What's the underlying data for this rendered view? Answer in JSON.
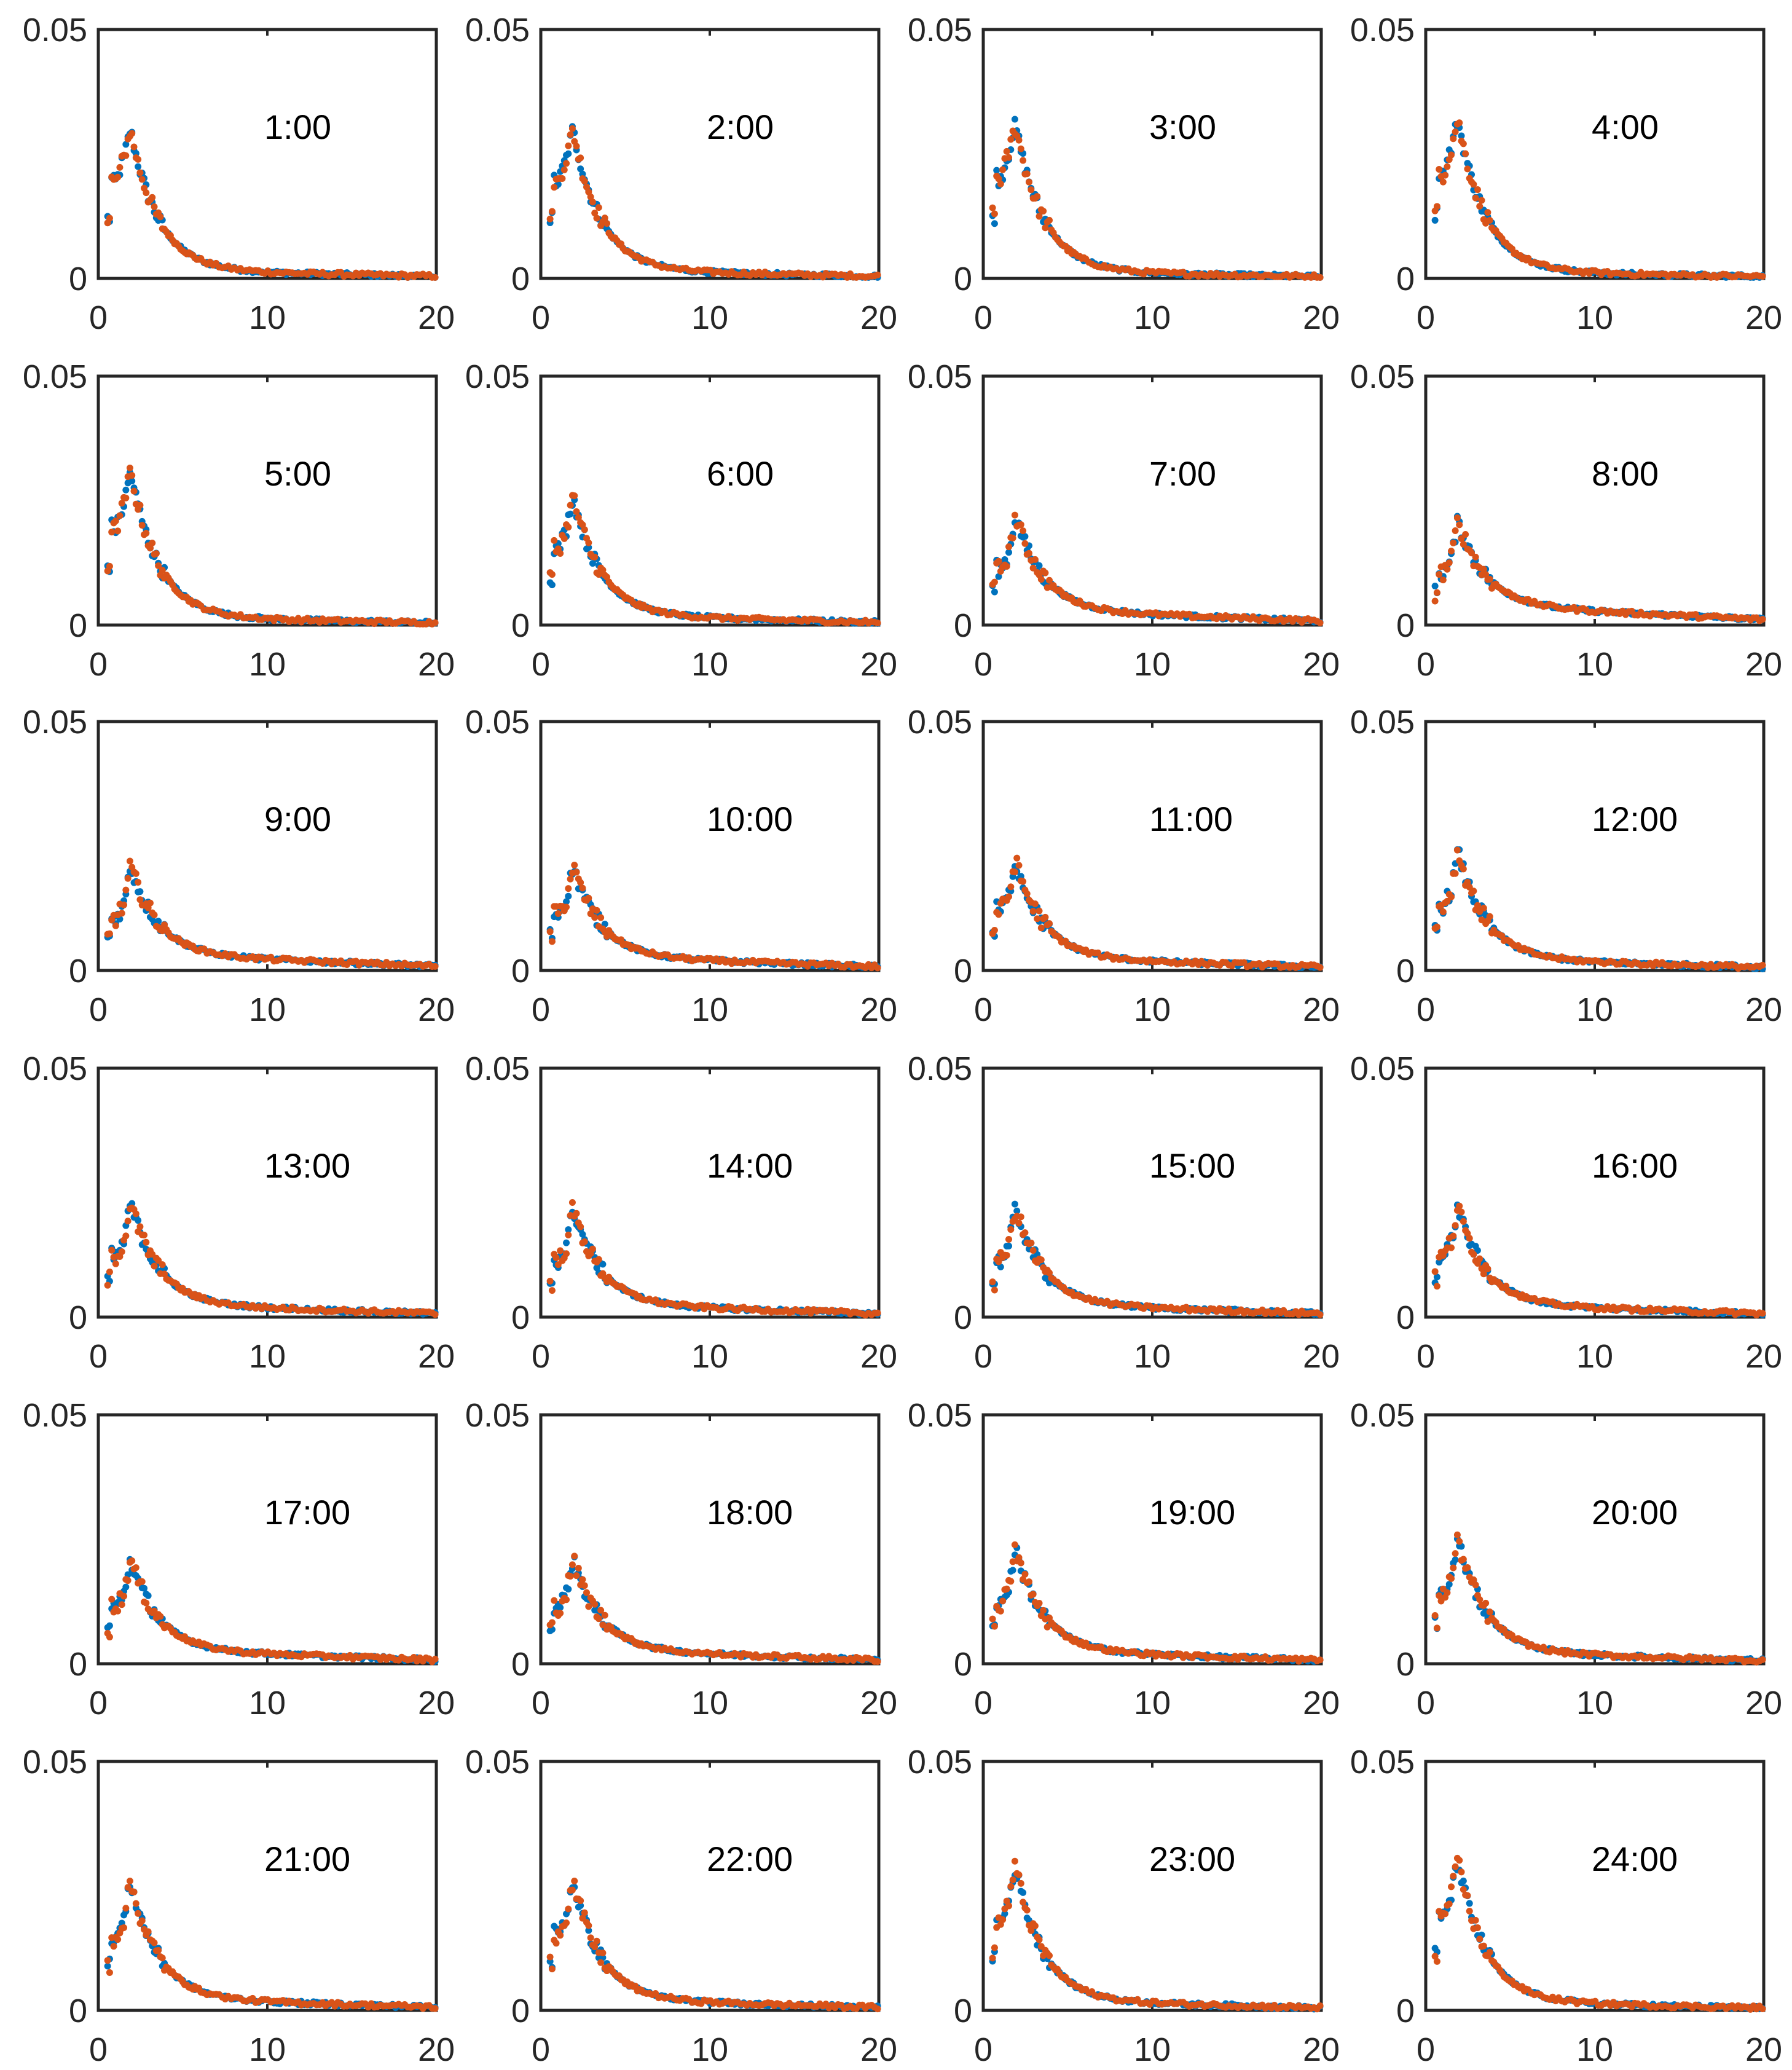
{
  "chart_data": {
    "type": "scatter",
    "layout": "6 rows x 4 columns of small-multiple panels",
    "xlim": [
      0,
      20
    ],
    "ylim": [
      0,
      0.05
    ],
    "xticks": [
      "0",
      "10",
      "20"
    ],
    "yticks": [
      "0",
      "0.05"
    ],
    "colors": {
      "series_a": "#0072BD",
      "series_b": "#D95319"
    },
    "panels": [
      {
        "label": "1:00",
        "peak": 0.03,
        "shoulder": 0.024,
        "tail": 0.0016
      },
      {
        "label": "2:00",
        "peak": 0.03,
        "shoulder": 0.024,
        "tail": 0.0016
      },
      {
        "label": "3:00",
        "peak": 0.031,
        "shoulder": 0.025,
        "tail": 0.0014
      },
      {
        "label": "4:00",
        "peak": 0.032,
        "shoulder": 0.026,
        "tail": 0.0014
      },
      {
        "label": "5:00",
        "peak": 0.031,
        "shoulder": 0.024,
        "tail": 0.0016
      },
      {
        "label": "6:00",
        "peak": 0.026,
        "shoulder": 0.019,
        "tail": 0.002
      },
      {
        "label": "7:00",
        "peak": 0.022,
        "shoulder": 0.014,
        "tail": 0.003
      },
      {
        "label": "8:00",
        "peak": 0.021,
        "shoulder": 0.013,
        "tail": 0.004
      },
      {
        "label": "9:00",
        "peak": 0.021,
        "shoulder": 0.013,
        "tail": 0.0032
      },
      {
        "label": "10:00",
        "peak": 0.021,
        "shoulder": 0.014,
        "tail": 0.0028
      },
      {
        "label": "11:00",
        "peak": 0.022,
        "shoulder": 0.015,
        "tail": 0.0026
      },
      {
        "label": "12:00",
        "peak": 0.024,
        "shoulder": 0.016,
        "tail": 0.0024
      },
      {
        "label": "13:00",
        "peak": 0.023,
        "shoulder": 0.015,
        "tail": 0.0026
      },
      {
        "label": "14:00",
        "peak": 0.022,
        "shoulder": 0.014,
        "tail": 0.0026
      },
      {
        "label": "15:00",
        "peak": 0.022,
        "shoulder": 0.014,
        "tail": 0.0026
      },
      {
        "label": "16:00",
        "peak": 0.022,
        "shoulder": 0.015,
        "tail": 0.0026
      },
      {
        "label": "17:00",
        "peak": 0.021,
        "shoulder": 0.014,
        "tail": 0.0028
      },
      {
        "label": "18:00",
        "peak": 0.021,
        "shoulder": 0.014,
        "tail": 0.0028
      },
      {
        "label": "19:00",
        "peak": 0.023,
        "shoulder": 0.015,
        "tail": 0.0026
      },
      {
        "label": "20:00",
        "peak": 0.025,
        "shoulder": 0.017,
        "tail": 0.0024
      },
      {
        "label": "21:00",
        "peak": 0.026,
        "shoulder": 0.018,
        "tail": 0.0024
      },
      {
        "label": "22:00",
        "peak": 0.026,
        "shoulder": 0.019,
        "tail": 0.0022
      },
      {
        "label": "23:00",
        "peak": 0.029,
        "shoulder": 0.022,
        "tail": 0.002
      },
      {
        "label": "24:00",
        "peak": 0.03,
        "shoulder": 0.023,
        "tail": 0.0018
      }
    ]
  }
}
